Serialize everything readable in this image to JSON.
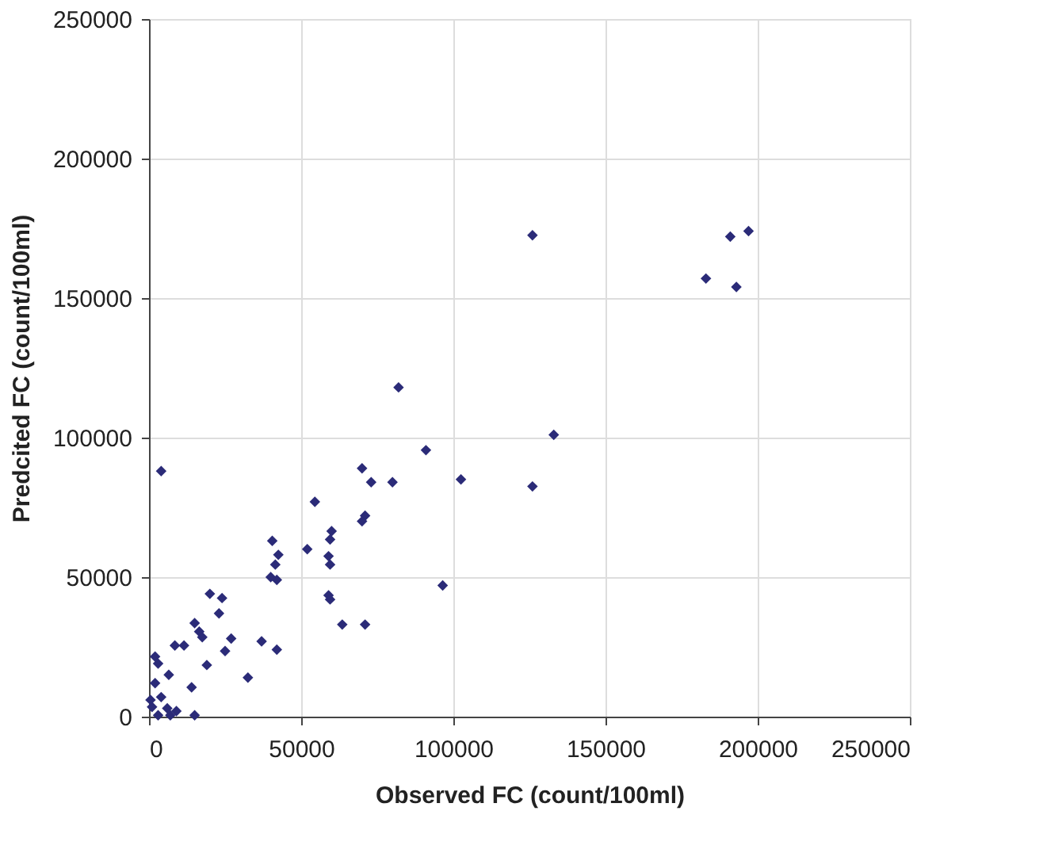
{
  "chart_data": {
    "type": "scatter",
    "xlabel": "Observed FC (count/100ml)",
    "ylabel": "Predcited FC (count/100ml)",
    "xlim": [
      0,
      250000
    ],
    "ylim": [
      0,
      250000
    ],
    "xticks": [
      0,
      50000,
      100000,
      150000,
      200000,
      250000
    ],
    "yticks": [
      0,
      50000,
      100000,
      150000,
      200000,
      250000
    ],
    "grid": true,
    "marker": "diamond",
    "series": [
      {
        "color": "#2b2b78",
        "x": [
          197000,
          191000,
          183000,
          193000,
          126000,
          133000,
          126000,
          82000,
          91000,
          102500,
          96500,
          70000,
          73000,
          80000,
          71000,
          70000,
          54500,
          60000,
          59500,
          52000,
          59000,
          59500,
          59000,
          59500,
          63500,
          71000,
          40500,
          42500,
          41500,
          40000,
          42000,
          37000,
          42000,
          32500,
          20000,
          24000,
          23000,
          15000,
          16500,
          17500,
          27000,
          25000,
          19000,
          8500,
          11500,
          4000,
          14000,
          15000,
          2000,
          3000,
          6500,
          2000,
          4000,
          1000,
          6000,
          9000,
          7000,
          3000,
          500
        ],
        "values": [
          174000,
          172000,
          157000,
          154000,
          172500,
          101000,
          82500,
          118000,
          95500,
          85000,
          47000,
          89000,
          84000,
          84000,
          72000,
          70000,
          77000,
          66500,
          63500,
          60000,
          57500,
          54500,
          43500,
          42000,
          33000,
          33000,
          63000,
          58000,
          54500,
          50000,
          49000,
          27000,
          24000,
          14000,
          44000,
          42500,
          37000,
          33500,
          30500,
          28500,
          28000,
          23500,
          18500,
          25500,
          25500,
          88000,
          10500,
          500,
          21500,
          19000,
          15000,
          12000,
          7000,
          3500,
          3000,
          2000,
          500,
          500,
          6000
        ]
      }
    ]
  }
}
